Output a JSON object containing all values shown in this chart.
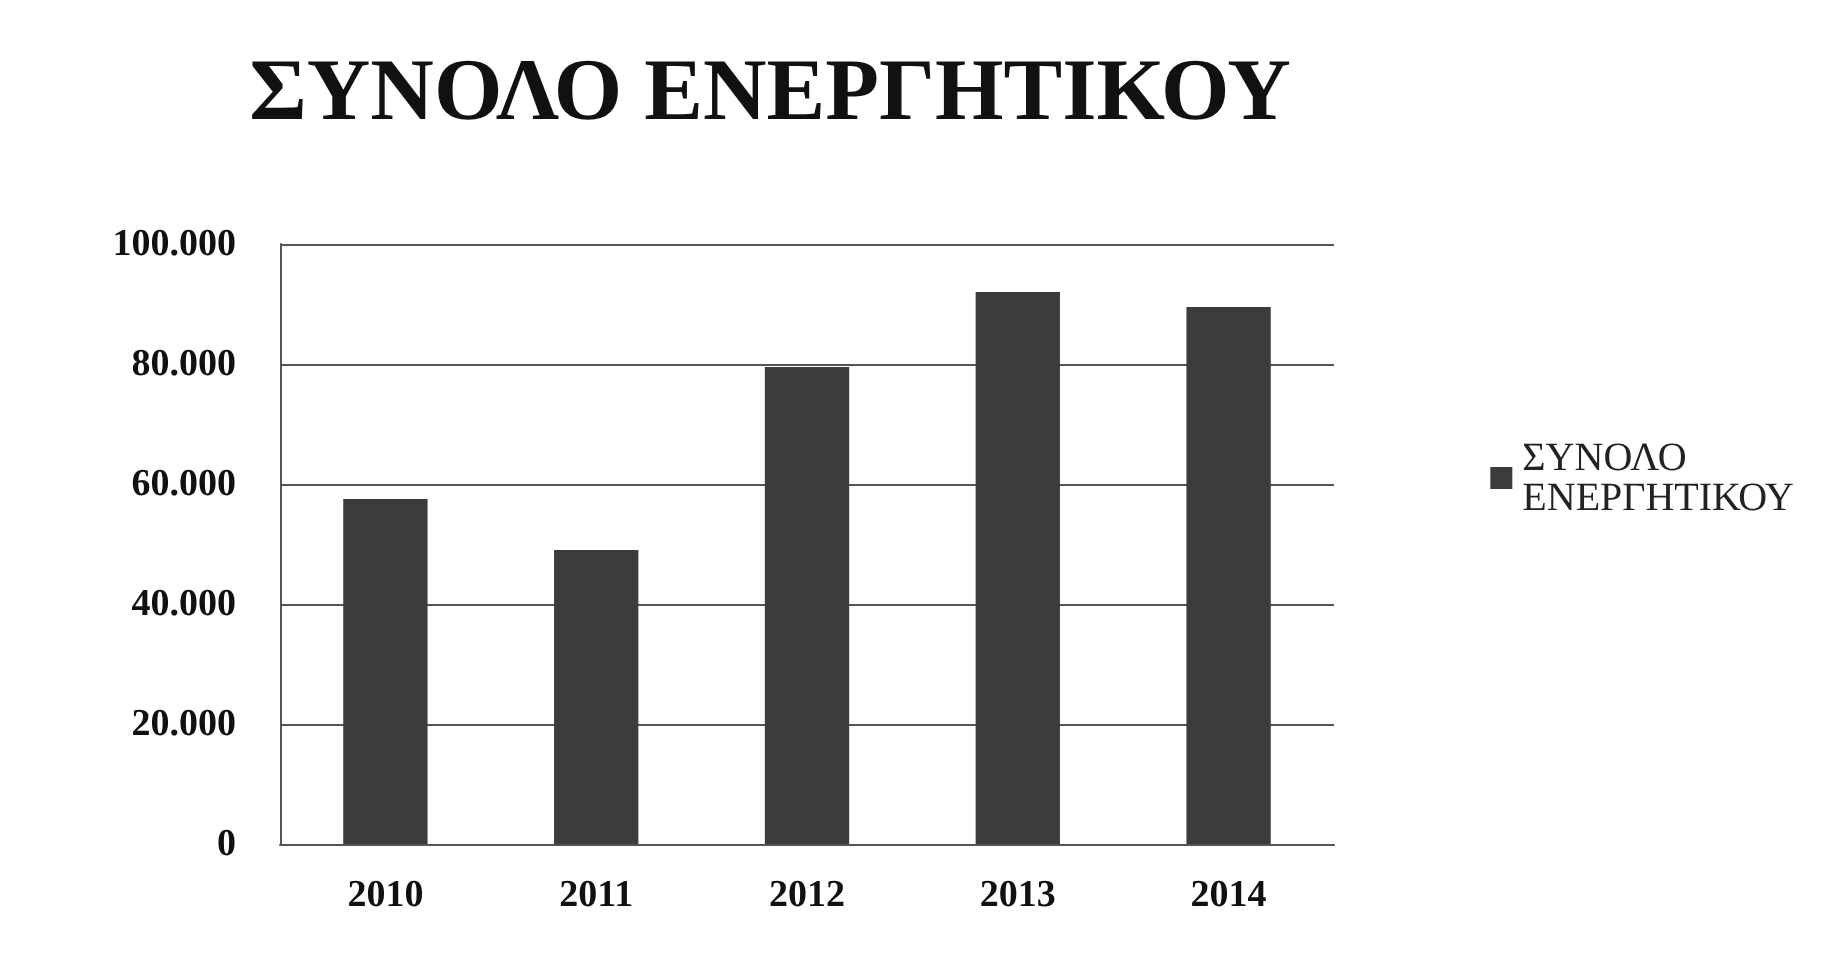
{
  "chart_data": {
    "type": "bar",
    "title": "ΣΥΝΟΛΟ ΕΝΕΡΓΗΤΙΚΟΥ",
    "categories": [
      "2010",
      "2011",
      "2012",
      "2013",
      "2014"
    ],
    "series": [
      {
        "name": "ΣΥΝΟΛΟ ΕΝΕΡΓΗΤΙΚΟΥ",
        "color": "#3c3c3e",
        "values": [
          57500,
          49000,
          79500,
          92000,
          89500
        ]
      }
    ],
    "ylim": [
      0,
      100000
    ],
    "yticks": [
      0,
      {
        "value": 20000,
        "label": "20.000"
      },
      {
        "value": 40000,
        "label": "40.000"
      },
      {
        "value": 60000,
        "label": "60.000"
      },
      {
        "value": 80000,
        "label": "80.000"
      },
      {
        "value": 100000,
        "label": "100.000"
      }
    ],
    "grid": "y",
    "legend": "right"
  }
}
